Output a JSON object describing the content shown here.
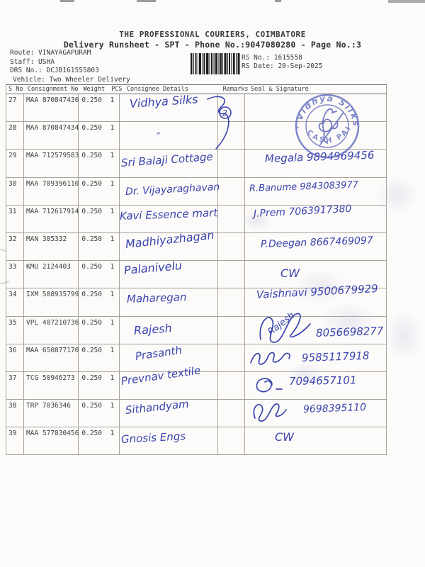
{
  "document": {
    "company": "THE PROFESSIONAL COURIERS, COIMBATORE",
    "subtitle": "Delivery Runsheet - SPT - Phone No.:9047080280 - Page No.:3",
    "route": "Route: VINAYAGAPURAM",
    "staff": "Staff: USHA",
    "drs_no": "DRS No.: DCJB161555803",
    "vehicle": "Vehicle: Two Wheeler Delivery",
    "rs_no": "RS No.: 1615558",
    "rs_date": "RS Date: 20-Sep-2025"
  },
  "stamp": {
    "top_text": "Vidhya Silks",
    "bottom_text": "CASH PAID"
  },
  "ink_color": "#3a43ae",
  "stamp_color": "#6570c0",
  "table": {
    "columns": [
      "S No",
      "Consignment No",
      "Weight",
      "PCS",
      "Consignee Details",
      "Remarks",
      "Seal & Signature"
    ],
    "rows": [
      {
        "sno": "27",
        "consignment": "MAA 870847430",
        "weight": "0.250",
        "pcs": "1",
        "consignee": "Vidhya Silks",
        "remark": "2",
        "signature": "",
        "signature_name": "",
        "scribble": false
      },
      {
        "sno": "28",
        "consignment": "MAA 870847434",
        "weight": "0.250",
        "pcs": "1",
        "consignee": "″",
        "remark": "",
        "signature": "",
        "signature_name": "",
        "scribble": false
      },
      {
        "sno": "29",
        "consignment": "MAA 712579583",
        "weight": "0.250",
        "pcs": "1",
        "consignee": "Sri Balaji Cottage",
        "remark": "",
        "signature": "Megala 9894969456",
        "signature_name": "",
        "scribble": false
      },
      {
        "sno": "30",
        "consignment": "MAA 709396110",
        "weight": "0.250",
        "pcs": "1",
        "consignee": "Dr. Vijayaraghavan",
        "remark": "",
        "signature": "R.Banume 9843083977",
        "signature_name": "",
        "scribble": false
      },
      {
        "sno": "31",
        "consignment": "MAA 712617914",
        "weight": "0.250",
        "pcs": "1",
        "consignee": "Kavi Essence mart",
        "remark": "",
        "signature": "J.Prem 7063917380",
        "signature_name": "",
        "scribble": false
      },
      {
        "sno": "32",
        "consignment": "MAN 385332",
        "weight": "0.250",
        "pcs": "1",
        "consignee": "Madhiyazhagan",
        "remark": "",
        "signature": "P.Deegan 8667469097",
        "signature_name": "",
        "scribble": false
      },
      {
        "sno": "33",
        "consignment": "KMU 2124403",
        "weight": "0.250",
        "pcs": "1",
        "consignee": "Palanivelu",
        "remark": "",
        "signature": "CW",
        "signature_name": "",
        "scribble": false
      },
      {
        "sno": "34",
        "consignment": "IXM 508935799",
        "weight": "0.250",
        "pcs": "1",
        "consignee": "Maharegan",
        "remark": "",
        "signature": "Vaishnavi 9500679929",
        "signature_name": "",
        "scribble": false
      },
      {
        "sno": "35",
        "consignment": "VPL 407210736",
        "weight": "0.250",
        "pcs": "1",
        "consignee": "Rajesh",
        "remark": "",
        "signature": "8056698277",
        "signature_name": "Rajesh",
        "scribble": true
      },
      {
        "sno": "36",
        "consignment": "MAA 650877170",
        "weight": "0.250",
        "pcs": "1",
        "consignee": "Prasanth",
        "remark": "",
        "signature": "9585117918",
        "signature_name": "",
        "scribble": true
      },
      {
        "sno": "37",
        "consignment": "TCG 50946273",
        "weight": "0.250",
        "pcs": "1",
        "consignee": "Prevnav textile",
        "remark": "",
        "signature": "7094657101",
        "signature_name": "",
        "scribble": true
      },
      {
        "sno": "38",
        "consignment": "TRP 7036346",
        "weight": "0.250",
        "pcs": "1",
        "consignee": "Sithandyam",
        "remark": "",
        "signature": "9698395110",
        "signature_name": "",
        "scribble": true
      },
      {
        "sno": "39",
        "consignment": "MAA 577830456",
        "weight": "0.250",
        "pcs": "1",
        "consignee": "Gnosis Engs",
        "remark": "",
        "signature": "CW",
        "signature_name": "",
        "scribble": false
      }
    ]
  }
}
